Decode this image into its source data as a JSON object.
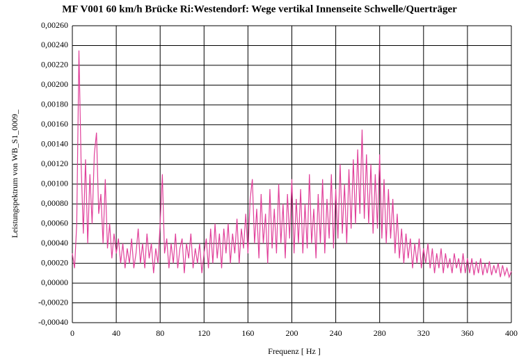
{
  "chart_data": {
    "type": "line",
    "title": "MF V001 60 km/h Brücke Ri:Westendorf: Wege vertikal Innenseite Schwelle/Querträger",
    "x_label": "Frequenz [ Hz ]",
    "y_label": "Leistungspektrum von WB_S1_0009_",
    "xlim": [
      0,
      400
    ],
    "xticks": [
      0,
      40,
      80,
      120,
      160,
      200,
      240,
      280,
      320,
      360,
      400
    ],
    "ylim": [
      -0.0004,
      0.0026
    ],
    "yticks": [
      {
        "value": -0.0004,
        "label": "-0,00040"
      },
      {
        "value": -0.0002,
        "label": "-0,00020"
      },
      {
        "value": 0,
        "label": "0,00000"
      },
      {
        "value": 0.0002,
        "label": "0,00020"
      },
      {
        "value": 0.0004,
        "label": "0,00040"
      },
      {
        "value": 0.0006,
        "label": "0,00060"
      },
      {
        "value": 0.0008,
        "label": "0,00080"
      },
      {
        "value": 0.001,
        "label": "0,00100"
      },
      {
        "value": 0.0012,
        "label": "0,00120"
      },
      {
        "value": 0.0014,
        "label": "0,00140"
      },
      {
        "value": 0.0016,
        "label": "0,00160"
      },
      {
        "value": 0.0018,
        "label": "0,00180"
      },
      {
        "value": 0.002,
        "label": "0,00200"
      },
      {
        "value": 0.0022,
        "label": "0,00220"
      },
      {
        "value": 0.0024,
        "label": "0,00240"
      },
      {
        "value": 0.0026,
        "label": "0,00260"
      }
    ],
    "grid": true,
    "series": [
      {
        "color": "#e0409a",
        "x": [
          0,
          2,
          4,
          6,
          8,
          10,
          12,
          14,
          16,
          18,
          20,
          22,
          24,
          26,
          28,
          30,
          32,
          34,
          36,
          38,
          40,
          42,
          44,
          46,
          48,
          50,
          52,
          54,
          56,
          58,
          60,
          62,
          64,
          66,
          68,
          70,
          72,
          74,
          76,
          78,
          80,
          82,
          84,
          86,
          88,
          90,
          92,
          94,
          96,
          98,
          100,
          102,
          104,
          106,
          108,
          110,
          112,
          114,
          116,
          118,
          120,
          122,
          124,
          126,
          128,
          130,
          132,
          134,
          136,
          138,
          140,
          142,
          144,
          146,
          148,
          150,
          152,
          154,
          156,
          158,
          160,
          162,
          164,
          166,
          168,
          170,
          172,
          174,
          176,
          178,
          180,
          182,
          184,
          186,
          188,
          190,
          192,
          194,
          196,
          198,
          200,
          202,
          204,
          206,
          208,
          210,
          212,
          214,
          216,
          218,
          220,
          222,
          224,
          226,
          228,
          230,
          232,
          234,
          236,
          238,
          240,
          242,
          244,
          246,
          248,
          250,
          252,
          254,
          256,
          258,
          260,
          262,
          264,
          266,
          268,
          270,
          272,
          274,
          276,
          278,
          280,
          282,
          284,
          286,
          288,
          290,
          292,
          294,
          296,
          298,
          300,
          302,
          304,
          306,
          308,
          310,
          312,
          314,
          316,
          318,
          320,
          322,
          324,
          326,
          328,
          330,
          332,
          334,
          336,
          338,
          340,
          342,
          344,
          346,
          348,
          350,
          352,
          354,
          356,
          358,
          360,
          362,
          364,
          366,
          368,
          370,
          372,
          374,
          376,
          378,
          380,
          382,
          384,
          386,
          388,
          390,
          392,
          394,
          396,
          398,
          400
        ],
        "values": [
          0.0003,
          0.00015,
          0.0006,
          0.00235,
          0.0012,
          0.0005,
          0.00125,
          0.0004,
          0.0011,
          0.0006,
          0.0013,
          0.00152,
          0.0007,
          0.0009,
          0.0004,
          0.00105,
          0.00035,
          0.0006,
          0.00025,
          0.0005,
          0.0003,
          0.00045,
          0.0002,
          0.0004,
          0.00015,
          0.00035,
          0.0002,
          0.00045,
          0.00015,
          0.0003,
          0.00055,
          0.0002,
          0.0004,
          0.00015,
          0.0005,
          0.00025,
          0.0004,
          0.0001,
          0.00035,
          0.0002,
          0.0006,
          0.0011,
          0.0003,
          0.00045,
          0.00015,
          0.0004,
          0.0002,
          0.0005,
          0.00015,
          0.00035,
          0.00045,
          0.0001,
          0.0004,
          0.00025,
          0.0005,
          0.00015,
          0.00035,
          0.0002,
          0.0004,
          0.0001,
          0.0003,
          0.00045,
          0.00015,
          0.00055,
          0.0002,
          0.0006,
          0.00025,
          0.0005,
          0.00015,
          0.00055,
          0.0003,
          0.0006,
          0.0002,
          0.0005,
          0.0003,
          0.00065,
          0.0002,
          0.00055,
          0.00035,
          0.0007,
          0.0003,
          0.00085,
          0.00105,
          0.0004,
          0.00075,
          0.00025,
          0.0009,
          0.0004,
          0.0007,
          0.0002,
          0.00095,
          0.00035,
          0.00075,
          0.0003,
          0.001,
          0.0004,
          0.0008,
          0.00025,
          0.0009,
          0.00045,
          0.00105,
          0.0003,
          0.00085,
          0.0004,
          0.00095,
          0.0003,
          0.0008,
          0.00035,
          0.0011,
          0.0004,
          0.00075,
          0.00025,
          0.0009,
          0.0004,
          0.00105,
          0.0003,
          0.00085,
          0.00045,
          0.0011,
          0.00035,
          0.00095,
          0.00045,
          0.0012,
          0.0005,
          0.001,
          0.0004,
          0.00115,
          0.00055,
          0.00125,
          0.0006,
          0.00135,
          0.0007,
          0.00155,
          0.00065,
          0.0013,
          0.0006,
          0.0012,
          0.0005,
          0.0011,
          0.00055,
          0.0013,
          0.00045,
          0.00105,
          0.0004,
          0.00095,
          0.00045,
          0.00085,
          0.0003,
          0.0007,
          0.00025,
          0.00055,
          0.0002,
          0.0005,
          0.00025,
          0.00045,
          0.00015,
          0.0004,
          0.0002,
          0.00045,
          0.00015,
          0.00035,
          0.0002,
          0.0004,
          0.00015,
          0.00035,
          0.0001,
          0.0003,
          0.00015,
          0.00035,
          0.0001,
          0.0003,
          0.00015,
          0.00025,
          0.0001,
          0.0003,
          0.00015,
          0.00025,
          0.0001,
          0.0003,
          0.0001,
          0.00025,
          0.0001,
          0.00025,
          8e-05,
          0.00022,
          0.0001,
          0.00025,
          8e-05,
          0.0002,
          0.0001,
          0.00022,
          8e-05,
          0.00018,
          0.0001,
          0.0002,
          6e-05,
          0.00018,
          8e-05,
          0.00015,
          6e-05,
          0.00012
        ]
      }
    ]
  }
}
